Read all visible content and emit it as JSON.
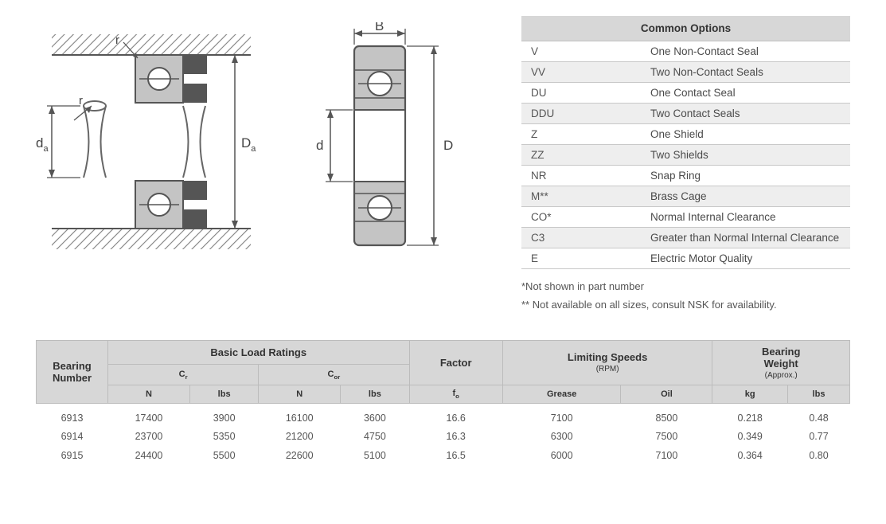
{
  "colors": {
    "header_bg": "#d7d7d7",
    "row_alt_bg": "#eeeeee",
    "border": "#bcbcbc",
    "text": "#4a4a4a",
    "diagram_stroke": "#6a6a6a",
    "diagram_fill_light": "#b9b9b9",
    "diagram_fill_dark": "#555555",
    "hatch": "#808080"
  },
  "diagram_labels": {
    "left": {
      "r1": "r",
      "r2": "r",
      "da_small": "d",
      "da_small_sub": "a",
      "Da_big": "D",
      "Da_big_sub": "a"
    },
    "right": {
      "B": "B",
      "d": "d",
      "D": "D"
    }
  },
  "options": {
    "title": "Common Options",
    "rows": [
      {
        "code": "V",
        "desc": "One Non-Contact Seal"
      },
      {
        "code": "VV",
        "desc": "Two Non-Contact Seals"
      },
      {
        "code": "DU",
        "desc": "One Contact Seal"
      },
      {
        "code": "DDU",
        "desc": "Two Contact Seals"
      },
      {
        "code": "Z",
        "desc": "One Shield"
      },
      {
        "code": "ZZ",
        "desc": "Two Shields"
      },
      {
        "code": "NR",
        "desc": "Snap Ring"
      },
      {
        "code": "M**",
        "desc": "Brass Cage"
      },
      {
        "code": "CO*",
        "desc": "Normal Internal Clearance"
      },
      {
        "code": "C3",
        "desc": "Greater than Normal Internal Clearance"
      },
      {
        "code": "E",
        "desc": "Electric Motor Quality"
      }
    ],
    "footnote1": "*Not shown in part number",
    "footnote2": "** Not available on all sizes, consult NSK for availability."
  },
  "ratings": {
    "headers": {
      "bearing_number": "Bearing\nNumber",
      "basic_load": "Basic Load Ratings",
      "factor": "Factor",
      "limiting_speeds": "Limiting Speeds",
      "limiting_speeds_sub": "(RPM)",
      "bearing_weight": "Bearing\nWeight",
      "bearing_weight_sub": "(Approx.)",
      "cr": "C",
      "cr_sub": "r",
      "cor": "C",
      "cor_sub": "or",
      "n": "N",
      "lbs": "lbs",
      "fo": "f",
      "fo_sub": "o",
      "grease": "Grease",
      "oil": "Oil",
      "kg": "kg"
    },
    "rows": [
      {
        "bn": "6913",
        "cr_n": "17400",
        "cr_lbs": "3900",
        "cor_n": "16100",
        "cor_lbs": "3600",
        "fo": "16.6",
        "grease": "7100",
        "oil": "8500",
        "kg": "0.218",
        "wlbs": "0.48"
      },
      {
        "bn": "6914",
        "cr_n": "23700",
        "cr_lbs": "5350",
        "cor_n": "21200",
        "cor_lbs": "4750",
        "fo": "16.3",
        "grease": "6300",
        "oil": "7500",
        "kg": "0.349",
        "wlbs": "0.77"
      },
      {
        "bn": "6915",
        "cr_n": "24400",
        "cr_lbs": "5500",
        "cor_n": "22600",
        "cor_lbs": "5100",
        "fo": "16.5",
        "grease": "6000",
        "oil": "7100",
        "kg": "0.364",
        "wlbs": "0.80"
      }
    ]
  }
}
